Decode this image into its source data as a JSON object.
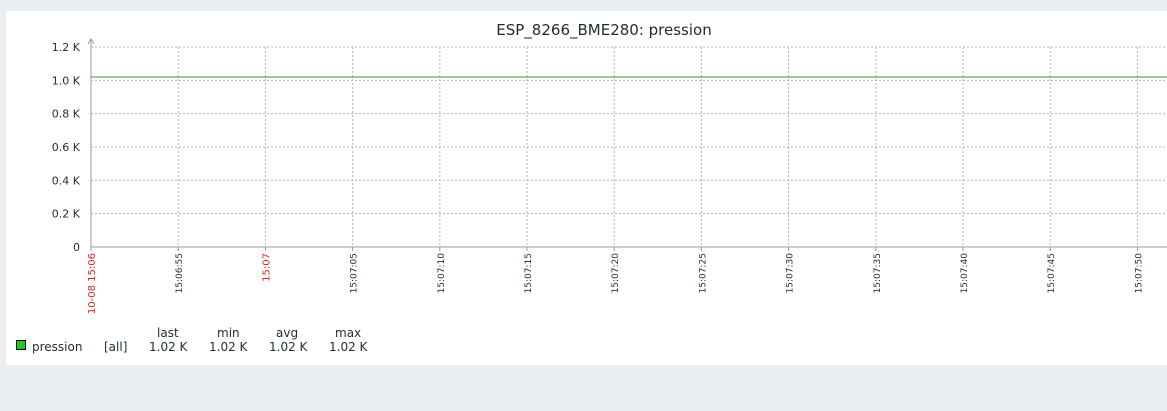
{
  "chart_data": {
    "type": "line",
    "title": "ESP_8266_BME280: pression",
    "y_ticks": [
      "0",
      "0.2 K",
      "0.4 K",
      "0.6 K",
      "0.8 K",
      "1.0 K",
      "1.2 K"
    ],
    "ylim": [
      0,
      1200
    ],
    "x_ticks": [
      {
        "label": "10-08 15:06",
        "highlight": true
      },
      {
        "label": "15:06:55",
        "highlight": false
      },
      {
        "label": "15:07",
        "highlight": true
      },
      {
        "label": "15:07:05",
        "highlight": false
      },
      {
        "label": "15:07:10",
        "highlight": false
      },
      {
        "label": "15:07:15",
        "highlight": false
      },
      {
        "label": "15:07:20",
        "highlight": false
      },
      {
        "label": "15:07:25",
        "highlight": false
      },
      {
        "label": "15:07:30",
        "highlight": false
      },
      {
        "label": "15:07:35",
        "highlight": false
      },
      {
        "label": "15:07:40",
        "highlight": false
      },
      {
        "label": "15:07:45",
        "highlight": false
      },
      {
        "label": "15:07:50",
        "highlight": false
      }
    ],
    "series": [
      {
        "name": "pression",
        "color": "#1fcc1f",
        "line_color": "#2e9e2e",
        "values": [
          1020,
          1020
        ]
      }
    ],
    "grid": true,
    "highlight_color": "#e0241b"
  },
  "legend": {
    "headers": {
      "last": "last",
      "min": "min",
      "avg": "avg",
      "max": "max"
    },
    "row": {
      "name": "pression",
      "scope": "[all]",
      "last": "1.02 K",
      "min": "1.02 K",
      "avg": "1.02 K",
      "max": "1.02 K"
    }
  }
}
